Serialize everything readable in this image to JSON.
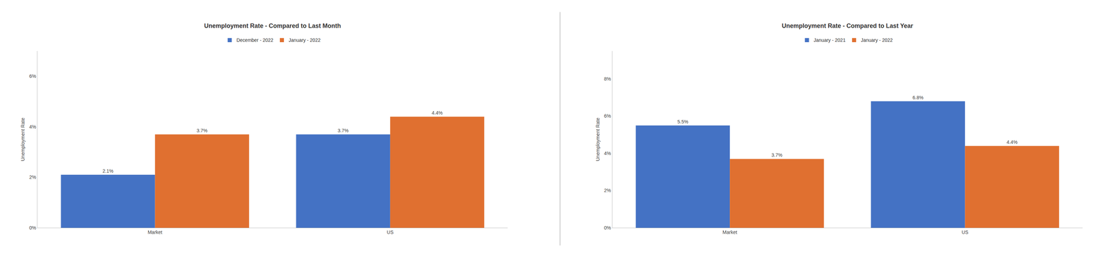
{
  "chart_data": [
    {
      "type": "bar",
      "title": "Unemployment Rate - Compared to Last Month",
      "categories": [
        "Market",
        "US"
      ],
      "series": [
        {
          "name": "December - 2022",
          "color": "#4472C4",
          "values": [
            2.1,
            3.7
          ],
          "value_labels": [
            "2.1%",
            "3.7%"
          ]
        },
        {
          "name": "January - 2022",
          "color": "#E07030",
          "values": [
            3.7,
            4.4
          ],
          "value_labels": [
            "3.7%",
            "4.4%"
          ]
        }
      ],
      "ylim": [
        0,
        7
      ],
      "yticks": [
        {
          "value": 0,
          "label": "0%"
        },
        {
          "value": 2,
          "label": "2%"
        },
        {
          "value": 4,
          "label": "4%"
        },
        {
          "value": 6,
          "label": "6%"
        }
      ],
      "ylabel": "Unemployment Rate",
      "grid": false,
      "legend": "top",
      "data_labels": true
    },
    {
      "type": "bar",
      "title": "Unemployment Rate - Compared to Last Year",
      "categories": [
        "Market",
        "US"
      ],
      "series": [
        {
          "name": "January - 2021",
          "color": "#4472C4",
          "values": [
            5.5,
            6.8
          ],
          "value_labels": [
            "5.5%",
            "6.8%"
          ]
        },
        {
          "name": "January - 2022",
          "color": "#E07030",
          "values": [
            3.7,
            4.4
          ],
          "value_labels": [
            "3.7%",
            "4.4%"
          ]
        }
      ],
      "ylim": [
        0,
        9.5
      ],
      "yticks": [
        {
          "value": 0,
          "label": "0%"
        },
        {
          "value": 2,
          "label": "2%"
        },
        {
          "value": 4,
          "label": "4%"
        },
        {
          "value": 6,
          "label": "6%"
        },
        {
          "value": 8,
          "label": "8%"
        }
      ],
      "ylabel": "Unemployment Rate",
      "grid": false,
      "legend": "top",
      "data_labels": true
    }
  ]
}
